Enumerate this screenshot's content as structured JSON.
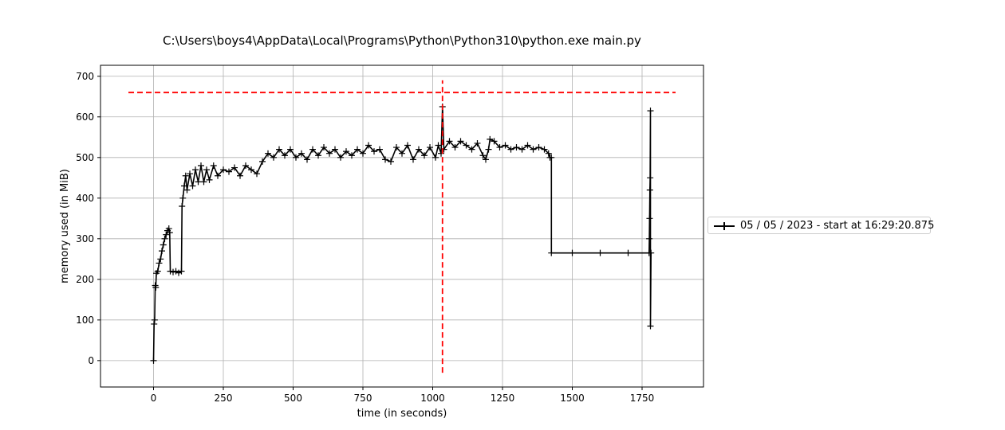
{
  "chart_data": {
    "type": "line",
    "title": "C:\\Users\\boys4\\AppData\\Local\\Programs\\Python\\Python310\\python.exe main.py",
    "xlabel": "time (in seconds)",
    "ylabel": "memory used (in MiB)",
    "xlim": [
      -190,
      1970
    ],
    "ylim": [
      -65,
      727
    ],
    "x_ticks": [
      0,
      250,
      500,
      750,
      1000,
      1250,
      1500,
      1750
    ],
    "y_ticks": [
      0,
      100,
      200,
      300,
      400,
      500,
      600,
      700
    ],
    "x_tick_labels": [
      "0",
      "250",
      "500",
      "750",
      "1000",
      "1250",
      "1500",
      "1750"
    ],
    "y_tick_labels": [
      "0",
      "100",
      "200",
      "300",
      "400",
      "500",
      "600",
      "700"
    ],
    "grid": true,
    "legend": {
      "placement": "outside-right",
      "entries": [
        "05 / 05 / 2023 - start at 16:29:20.875"
      ]
    },
    "series": [
      {
        "name": "05 / 05 / 2023 - start at 16:29:20.875",
        "color": "#000000",
        "marker": "+",
        "points": [
          [
            0,
            0
          ],
          [
            2,
            90
          ],
          [
            4,
            100
          ],
          [
            6,
            185
          ],
          [
            8,
            180
          ],
          [
            10,
            215
          ],
          [
            15,
            220
          ],
          [
            20,
            240
          ],
          [
            25,
            250
          ],
          [
            30,
            270
          ],
          [
            35,
            285
          ],
          [
            40,
            300
          ],
          [
            45,
            310
          ],
          [
            50,
            320
          ],
          [
            55,
            325
          ],
          [
            58,
            315
          ],
          [
            60,
            220
          ],
          [
            70,
            218
          ],
          [
            80,
            220
          ],
          [
            90,
            216
          ],
          [
            100,
            220
          ],
          [
            102,
            380
          ],
          [
            105,
            400
          ],
          [
            110,
            430
          ],
          [
            115,
            455
          ],
          [
            120,
            420
          ],
          [
            130,
            460
          ],
          [
            140,
            430
          ],
          [
            150,
            470
          ],
          [
            160,
            440
          ],
          [
            170,
            480
          ],
          [
            180,
            440
          ],
          [
            190,
            470
          ],
          [
            200,
            445
          ],
          [
            215,
            480
          ],
          [
            230,
            455
          ],
          [
            250,
            470
          ],
          [
            270,
            465
          ],
          [
            290,
            475
          ],
          [
            310,
            455
          ],
          [
            330,
            480
          ],
          [
            350,
            470
          ],
          [
            370,
            460
          ],
          [
            390,
            490
          ],
          [
            410,
            510
          ],
          [
            430,
            500
          ],
          [
            450,
            520
          ],
          [
            470,
            505
          ],
          [
            490,
            520
          ],
          [
            510,
            500
          ],
          [
            530,
            510
          ],
          [
            550,
            495
          ],
          [
            570,
            520
          ],
          [
            590,
            505
          ],
          [
            610,
            525
          ],
          [
            630,
            510
          ],
          [
            650,
            520
          ],
          [
            670,
            500
          ],
          [
            690,
            515
          ],
          [
            710,
            505
          ],
          [
            730,
            520
          ],
          [
            750,
            510
          ],
          [
            770,
            530
          ],
          [
            790,
            515
          ],
          [
            810,
            520
          ],
          [
            830,
            495
          ],
          [
            850,
            490
          ],
          [
            870,
            525
          ],
          [
            890,
            510
          ],
          [
            910,
            530
          ],
          [
            930,
            495
          ],
          [
            950,
            520
          ],
          [
            970,
            505
          ],
          [
            990,
            525
          ],
          [
            1010,
            500
          ],
          [
            1020,
            530
          ],
          [
            1030,
            510
          ],
          [
            1035,
            625
          ],
          [
            1040,
            520
          ],
          [
            1060,
            540
          ],
          [
            1080,
            525
          ],
          [
            1100,
            540
          ],
          [
            1120,
            530
          ],
          [
            1140,
            520
          ],
          [
            1160,
            535
          ],
          [
            1180,
            505
          ],
          [
            1190,
            495
          ],
          [
            1200,
            520
          ],
          [
            1205,
            545
          ],
          [
            1220,
            540
          ],
          [
            1240,
            525
          ],
          [
            1260,
            530
          ],
          [
            1280,
            520
          ],
          [
            1300,
            525
          ],
          [
            1320,
            520
          ],
          [
            1340,
            530
          ],
          [
            1360,
            520
          ],
          [
            1380,
            525
          ],
          [
            1400,
            520
          ],
          [
            1415,
            510
          ],
          [
            1420,
            500
          ],
          [
            1425,
            500
          ],
          [
            1425,
            265
          ],
          [
            1500,
            265
          ],
          [
            1600,
            265
          ],
          [
            1700,
            265
          ],
          [
            1775,
            265
          ],
          [
            1776,
            300
          ],
          [
            1777,
            350
          ],
          [
            1778,
            420
          ],
          [
            1779,
            450
          ],
          [
            1780,
            615
          ],
          [
            1780,
            85
          ],
          [
            1782,
            265
          ]
        ]
      }
    ],
    "reference_lines": [
      {
        "orientation": "horizontal",
        "y": 660,
        "x_range": [
          -90,
          1870
        ],
        "color": "#ff0000",
        "style": "dashed"
      },
      {
        "orientation": "vertical",
        "x": 1035,
        "y_range": [
          -30,
          690
        ],
        "color": "#ff0000",
        "style": "dashed"
      }
    ]
  }
}
